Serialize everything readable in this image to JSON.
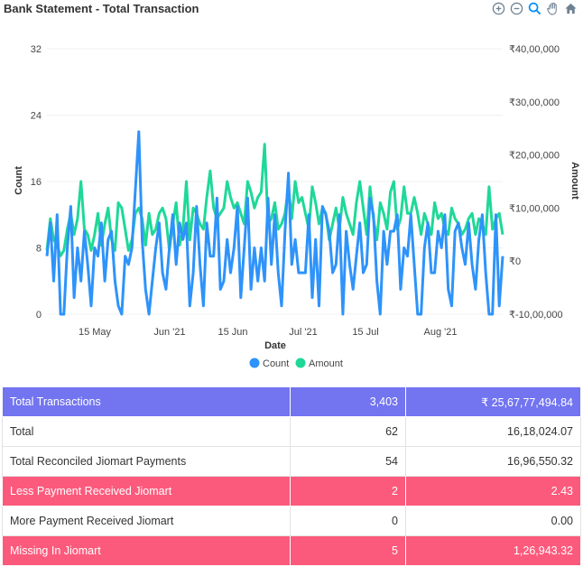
{
  "header": {
    "title": "Bank Statement - Total Transaction"
  },
  "toolbar": {
    "icons": [
      "zoom-in-icon",
      "zoom-out-icon",
      "magnify-icon",
      "pan-hand-icon",
      "home-icon"
    ]
  },
  "colors": {
    "count": "#2e93fa",
    "amount": "#1fd898",
    "head": "#7274f0",
    "pink": "#fc5a7c"
  },
  "chart_data": {
    "type": "line",
    "xlabel": "Date",
    "ylabel": "Count",
    "y2label": "Amount",
    "ylim": [
      0,
      32
    ],
    "y2lim": [
      -1000000,
      4000000
    ],
    "yticks": [
      "0",
      "8",
      "16",
      "24",
      "32"
    ],
    "y2ticks": [
      "₹-10,00,000",
      "₹0",
      "₹10,00,000",
      "₹20,00,000",
      "₹30,00,000",
      "₹40,00,000"
    ],
    "xticks": [
      "15 May",
      "Jun '21",
      "15 Jun",
      "Jul '21",
      "15 Jul",
      "Aug '21"
    ],
    "legend": [
      "Count",
      "Amount"
    ],
    "legend_position": "bottom",
    "x_start": "2021-05-01",
    "series": [
      {
        "name": "Count",
        "axis": "left",
        "values": [
          7,
          11,
          4,
          12,
          0,
          0,
          8,
          13,
          2,
          8,
          4,
          10,
          6,
          1,
          8,
          7,
          11,
          4,
          9,
          10,
          4,
          1,
          0,
          7,
          6,
          8,
          15,
          22,
          9,
          3,
          0,
          4,
          8,
          11,
          5,
          3,
          8,
          12,
          6,
          11,
          9,
          11,
          1,
          5,
          13,
          6,
          1,
          11,
          7,
          7,
          14,
          3,
          4,
          9,
          5,
          8,
          13,
          2,
          8,
          14,
          3,
          8,
          4,
          8,
          4,
          14,
          6,
          12,
          5,
          1,
          10,
          17,
          6,
          9,
          5,
          5,
          5,
          12,
          2,
          9,
          1,
          13,
          12,
          10,
          5,
          6,
          12,
          0,
          10,
          6,
          3,
          7,
          11,
          5,
          6,
          14,
          12,
          4,
          0,
          10,
          6,
          10,
          10,
          12,
          3,
          8,
          7,
          12,
          6,
          0,
          0,
          8,
          11,
          5,
          5,
          10,
          8,
          12,
          3,
          1,
          10,
          11,
          8,
          6,
          11,
          6,
          3,
          9,
          12,
          5,
          0,
          0,
          12,
          1,
          7
        ],
        "sample_step_days": 0.8
      },
      {
        "name": "Amount",
        "axis": "right",
        "values": [
          200000,
          800000,
          400000,
          300000,
          100000,
          200000,
          600000,
          900000,
          500000,
          800000,
          1500000,
          600000,
          500000,
          200000,
          500000,
          900000,
          300000,
          700000,
          1000000,
          400000,
          200000,
          1100000,
          1000000,
          600000,
          200000,
          400000,
          900000,
          1000000,
          800000,
          300000,
          900000,
          500000,
          600000,
          900000,
          1000000,
          800000,
          200000,
          700000,
          1100000,
          300000,
          600000,
          1500000,
          400000,
          1000000,
          900000,
          700000,
          600000,
          1200000,
          1700000,
          1000000,
          800000,
          900000,
          1000000,
          1500000,
          1200000,
          1000000,
          1100000,
          900000,
          700000,
          1500000,
          1300000,
          1000000,
          1200000,
          1300000,
          2200000,
          700000,
          800000,
          1100000,
          600000,
          700000,
          900000,
          1400000,
          800000,
          1500000,
          1100000,
          1200000,
          900000,
          600000,
          1400000,
          1100000,
          700000,
          1000000,
          900000,
          400000,
          700000,
          1000000,
          600000,
          1200000,
          900000,
          700000,
          500000,
          1100000,
          1500000,
          1000000,
          500000,
          1400000,
          800000,
          400000,
          1100000,
          900000,
          600000,
          1300000,
          1500000,
          600000,
          800000,
          1400000,
          900000,
          900000,
          1200000,
          900000,
          500000,
          900000,
          700000,
          500000,
          1100000,
          800000,
          900000,
          600000,
          500000,
          1000000,
          800000,
          700000,
          500000,
          600000,
          800000,
          900000,
          500000,
          800000,
          700000,
          500000,
          1400000,
          600000,
          800000,
          900000,
          500000
        ],
        "sample_step_days": 0.8
      }
    ]
  },
  "table": {
    "rows": [
      {
        "style": "head",
        "label": "Total Transactions",
        "count": "3,403",
        "amount": "₹ 25,67,77,494.84"
      },
      {
        "style": "plain",
        "label": "Total",
        "count": "62",
        "amount": "16,18,024.07"
      },
      {
        "style": "plain",
        "label": "Total Reconciled  Jiomart Payments",
        "count": "54",
        "amount": "16,96,550.32"
      },
      {
        "style": "pink",
        "label": "Less Payment Received Jiomart",
        "count": "2",
        "amount": "2.43"
      },
      {
        "style": "plain",
        "label": "More Payment Received Jiomart",
        "count": "0",
        "amount": "0.00"
      },
      {
        "style": "pink",
        "label": "Missing In Jiomart",
        "count": "5",
        "amount": "1,26,943.32"
      }
    ]
  }
}
